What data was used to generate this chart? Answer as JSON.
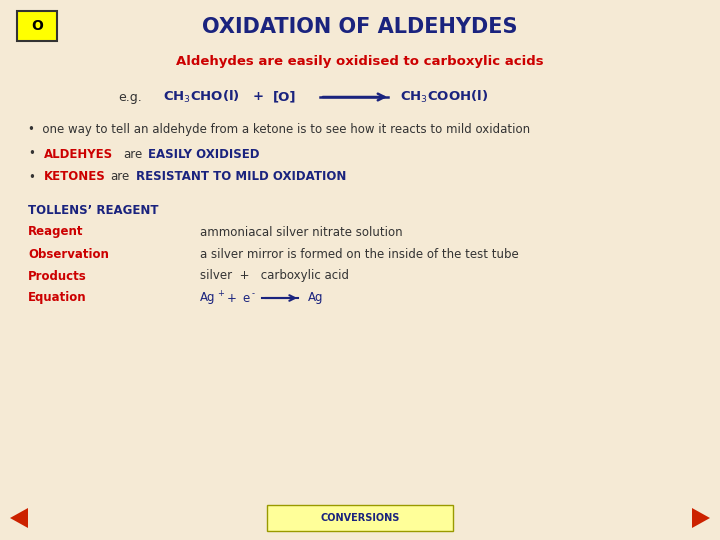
{
  "bg_color": "#f5ead5",
  "title": "OXIDATION OF ALDEHYDES",
  "title_color": "#1a237e",
  "title_fontsize": 15,
  "subtitle": "Aldehydes are easily oxidised to carboxylic acids",
  "subtitle_color": "#cc0000",
  "subtitle_fontsize": 9.5,
  "box_label": "O",
  "box_color": "#ffff00",
  "box_border": "#333333",
  "nav_color": "#cc2200",
  "conversions_bg": "#ffff99",
  "conversions_text": "CONVERSIONS",
  "conversions_color": "#1a237e",
  "dark_blue": "#1a237e",
  "red": "#cc0000",
  "dark": "#333333"
}
